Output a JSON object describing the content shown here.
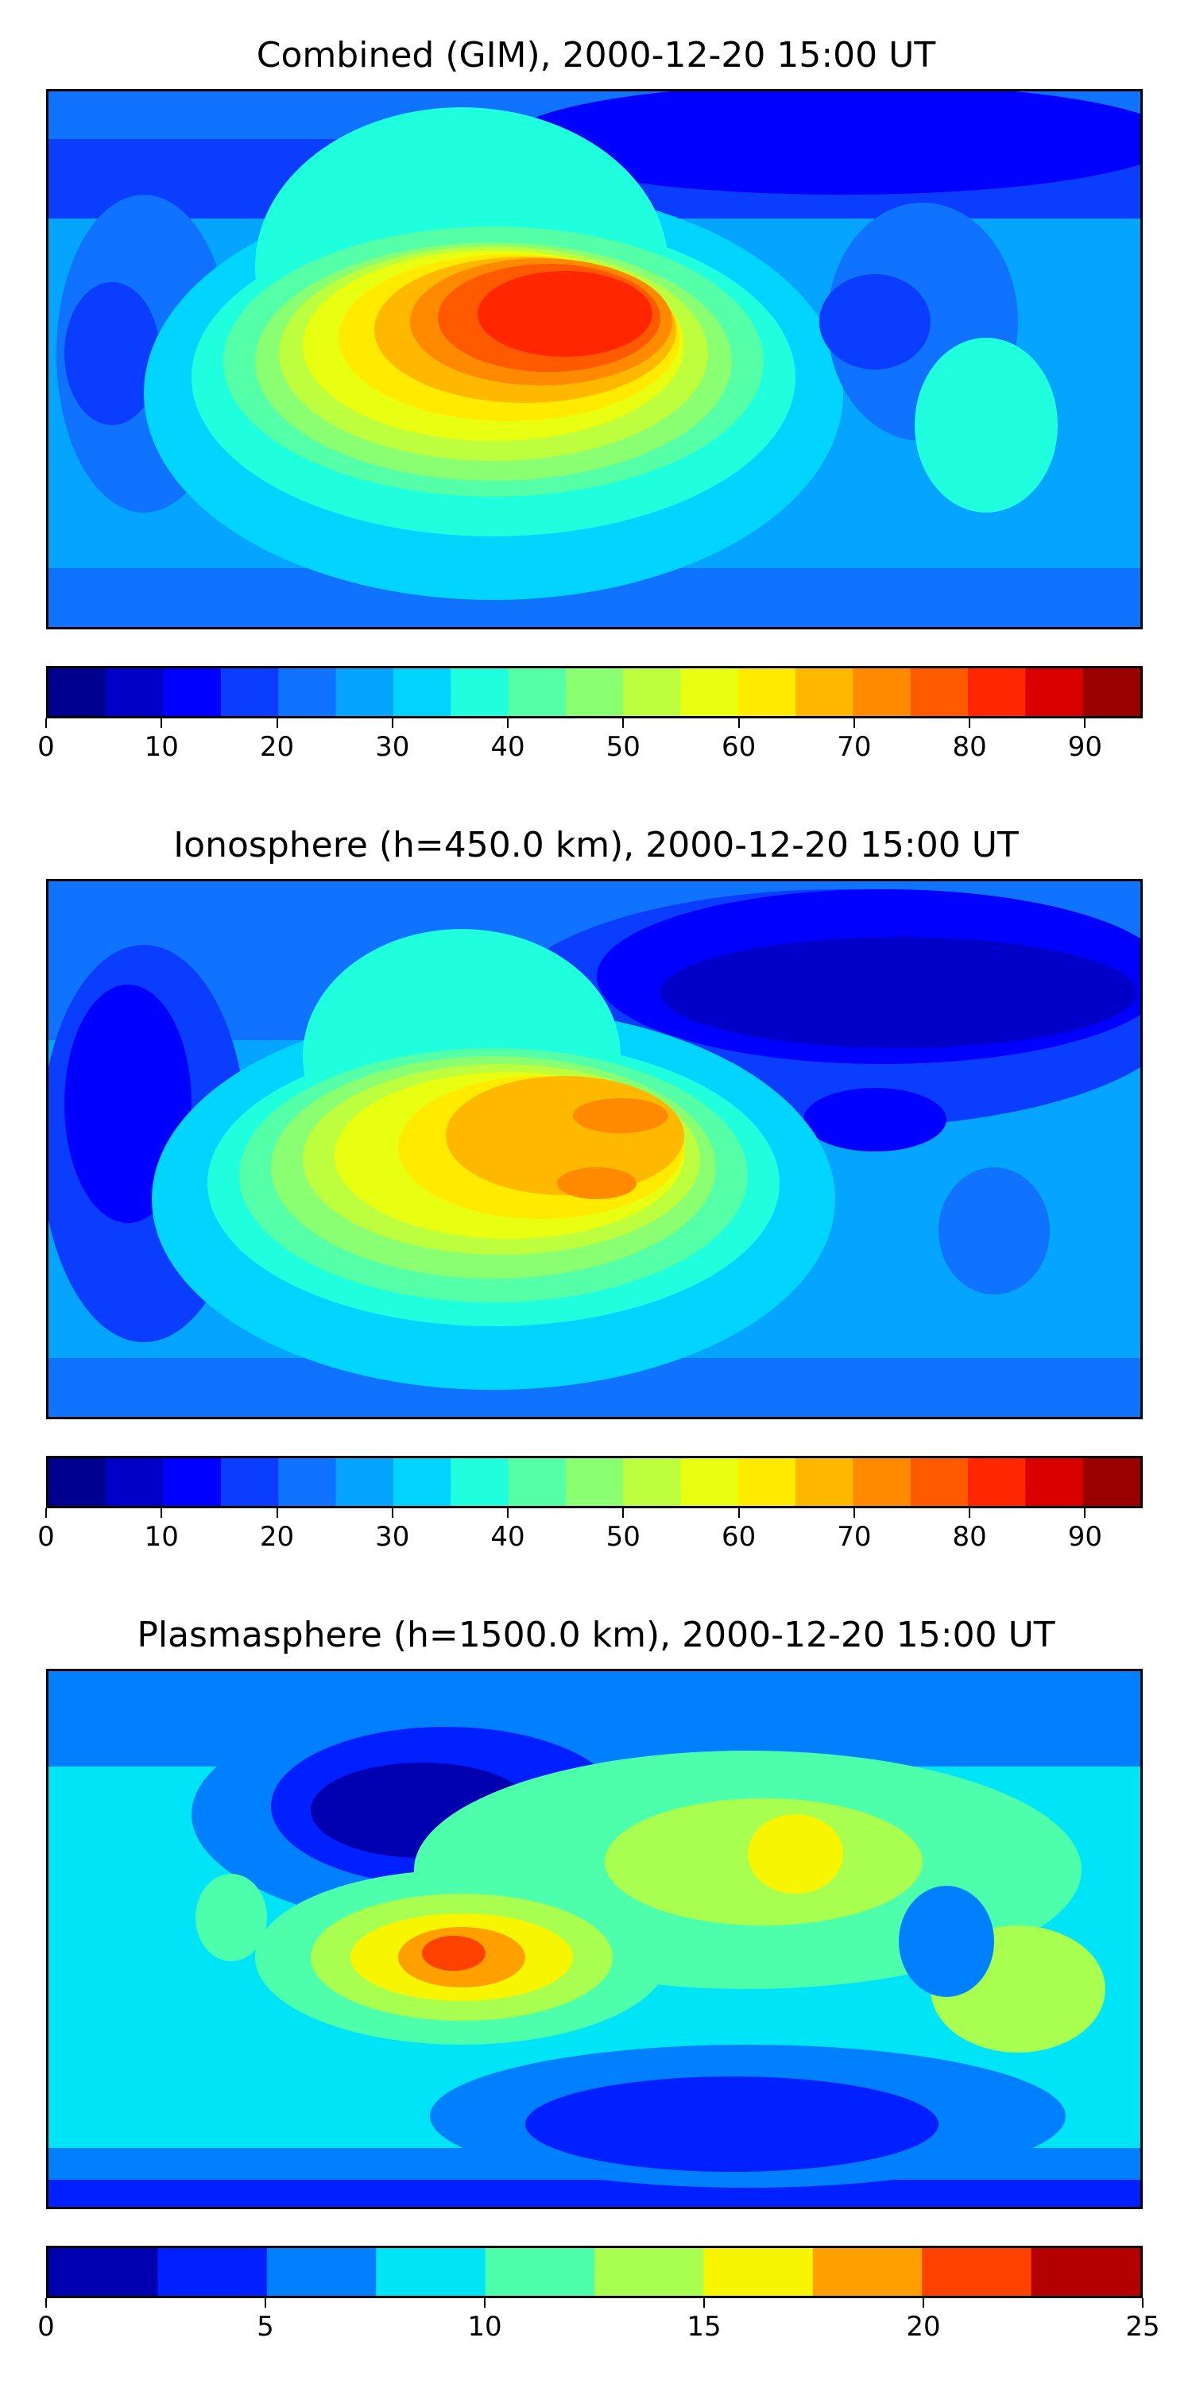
{
  "panels": [
    {
      "title": "Combined (GIM), 2000-12-20 15:00 UT",
      "colorbar": {
        "min": 0,
        "max": 95,
        "step": 5,
        "ticks": [
          "0",
          "10",
          "20",
          "30",
          "40",
          "50",
          "60",
          "70",
          "80",
          "90"
        ],
        "tick_values": [
          0,
          10,
          20,
          30,
          40,
          50,
          60,
          70,
          80,
          90
        ],
        "colors": [
          "#00008f",
          "#0000c8",
          "#0000ff",
          "#0b3dff",
          "#0f73ff",
          "#05a4ff",
          "#00d4ff",
          "#1fffdd",
          "#55ffa8",
          "#8aff72",
          "#bdff3e",
          "#e8ff12",
          "#ffea00",
          "#ffb800",
          "#ff8a00",
          "#ff5a00",
          "#ff2600",
          "#d90000",
          "#9a0000"
        ]
      }
    },
    {
      "title": "Ionosphere  (h=450.0 km), 2000-12-20 15:00 UT",
      "colorbar": {
        "min": 0,
        "max": 95,
        "step": 5,
        "ticks": [
          "0",
          "10",
          "20",
          "30",
          "40",
          "50",
          "60",
          "70",
          "80",
          "90"
        ],
        "tick_values": [
          0,
          10,
          20,
          30,
          40,
          50,
          60,
          70,
          80,
          90
        ],
        "colors": [
          "#00008f",
          "#0000c8",
          "#0000ff",
          "#0b3dff",
          "#0f73ff",
          "#05a4ff",
          "#00d4ff",
          "#1fffdd",
          "#55ffa8",
          "#8aff72",
          "#bdff3e",
          "#e8ff12",
          "#ffea00",
          "#ffb800",
          "#ff8a00",
          "#ff5a00",
          "#ff2600",
          "#d90000",
          "#9a0000"
        ]
      }
    },
    {
      "title": "Plasmasphere (h=1500.0 km), 2000-12-20 15:00 UT",
      "colorbar": {
        "min": 0,
        "max": 25,
        "step": 2.5,
        "ticks": [
          "0",
          "5",
          "10",
          "15",
          "20",
          "25"
        ],
        "tick_values": [
          0,
          5,
          10,
          15,
          20,
          25
        ],
        "colors": [
          "#0000b0",
          "#0020ff",
          "#0080ff",
          "#00e4f8",
          "#4dffaa",
          "#a8ff50",
          "#f8f500",
          "#ffa000",
          "#ff4200",
          "#b40000"
        ]
      }
    }
  ]
}
